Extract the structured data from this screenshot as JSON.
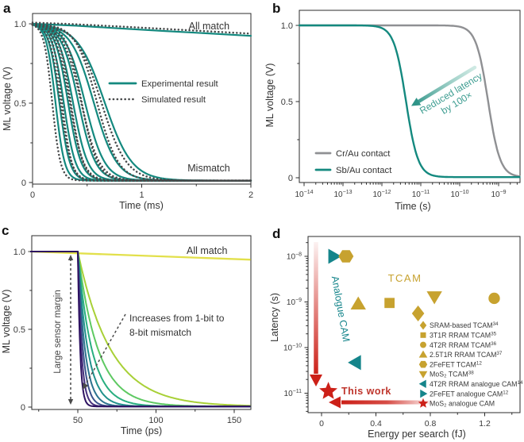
{
  "colors": {
    "teal_curve": "#14897f",
    "teal_marker": "#15858b",
    "teal_text": "#3f9e92",
    "gray_curve": "#8f9093",
    "dark_dotted": "#47494a",
    "gold": "#c7a22f",
    "red": "#cc2018",
    "red_text": "#bf352c",
    "yellow": "#e2e04b",
    "axis": "#2b2b2b",
    "text": "#3a3a3a",
    "anno": "#333333",
    "dash_gray": "#4a4a4a"
  },
  "chart_data": [
    {
      "panel_label": "a",
      "type": "line",
      "xlabel": "Time (ms)",
      "ylabel": "ML voltage (V)",
      "xlim": [
        0,
        2
      ],
      "ylim": [
        0,
        1.07
      ],
      "xticks": [
        {
          "v": 0,
          "t": "0"
        },
        {
          "v": 1,
          "t": "1"
        },
        {
          "v": 2,
          "t": "2"
        }
      ],
      "xminor": [
        0.5,
        1.5
      ],
      "yticks": [
        {
          "v": 0,
          "t": "0"
        },
        {
          "v": 0.5,
          "t": "0.5"
        },
        {
          "v": 1,
          "t": "1.0"
        }
      ],
      "yminor": [
        0.25,
        0.75
      ],
      "annotations": [
        {
          "text": "All match",
          "x": 1.43,
          "y": 0.985
        },
        {
          "text": "Mismatch",
          "x": 1.42,
          "y": 0.09
        }
      ],
      "legend": [
        {
          "label": "Experimental result",
          "style": "solid",
          "color_key": "teal_curve"
        },
        {
          "label": "Simulated result",
          "style": "dotted",
          "color_key": "dark_dotted"
        }
      ],
      "series": [
        {
          "name": "all-match-experimental",
          "model": "points",
          "style": "solid",
          "color_key": "teal_curve",
          "width": 2.2,
          "points": [
            [
              0,
              1.0
            ],
            [
              0.4,
              0.988
            ],
            [
              0.8,
              0.971
            ],
            [
              1.2,
              0.955
            ],
            [
              1.6,
              0.94
            ],
            [
              2,
              0.924
            ]
          ]
        },
        {
          "name": "mismatch-experimental",
          "model": "logistic-group",
          "style": "solid",
          "color_key": "teal_curve",
          "width": 2.2,
          "floor": 0.012,
          "curves": [
            {
              "m": 0.21,
              "w": 0.042
            },
            {
              "m": 0.245,
              "w": 0.048
            },
            {
              "m": 0.285,
              "w": 0.054
            },
            {
              "m": 0.325,
              "w": 0.06
            },
            {
              "m": 0.37,
              "w": 0.068
            },
            {
              "m": 0.42,
              "w": 0.078
            },
            {
              "m": 0.48,
              "w": 0.09
            },
            {
              "m": 0.56,
              "w": 0.105
            },
            {
              "m": 0.66,
              "w": 0.125
            }
          ]
        },
        {
          "name": "all-match-simulated",
          "model": "points",
          "style": "dotted",
          "color_key": "dark_dotted",
          "width": 2.5,
          "points": [
            [
              0,
              1.008
            ],
            [
              0.4,
              0.997
            ],
            [
              0.8,
              0.983
            ],
            [
              1.2,
              0.968
            ],
            [
              1.6,
              0.953
            ],
            [
              2,
              0.938
            ]
          ]
        },
        {
          "name": "mismatch-simulated",
          "model": "logistic-group",
          "style": "dotted",
          "color_key": "dark_dotted",
          "width": 2.5,
          "floor": 0.012,
          "curves": [
            {
              "m": 0.18,
              "w": 0.038
            },
            {
              "m": 0.27,
              "w": 0.044
            },
            {
              "m": 0.255,
              "w": 0.05
            },
            {
              "m": 0.35,
              "w": 0.056
            },
            {
              "m": 0.34,
              "w": 0.063
            },
            {
              "m": 0.45,
              "w": 0.072
            },
            {
              "m": 0.445,
              "w": 0.083
            },
            {
              "m": 0.59,
              "w": 0.097
            },
            {
              "m": 0.63,
              "w": 0.115
            }
          ]
        }
      ]
    },
    {
      "panel_label": "b",
      "type": "line",
      "xscale": "log",
      "xlabel": "Time (s)",
      "ylabel": "ML voltage (V)",
      "xlim_log": [
        -14.12,
        -8.46
      ],
      "ylim": [
        0,
        1.07
      ],
      "xticks_log": [
        {
          "v": -14,
          "exp": "−14"
        },
        {
          "v": -13,
          "exp": "−13"
        },
        {
          "v": -12,
          "exp": "−12"
        },
        {
          "v": -11,
          "exp": "−11"
        },
        {
          "v": -10,
          "exp": "−10"
        },
        {
          "v": -9,
          "exp": "−9"
        }
      ],
      "yticks": [
        {
          "v": 0,
          "t": "0"
        },
        {
          "v": 0.5,
          "t": "0.5"
        },
        {
          "v": 1,
          "t": "1.0"
        }
      ],
      "yminor": [
        0.25,
        0.75
      ],
      "legend": [
        {
          "label": "Cr/Au contact",
          "color_key": "gray_curve"
        },
        {
          "label": "Sb/Au contact",
          "color_key": "teal_curve"
        }
      ],
      "annotation_arrow": {
        "lines": [
          "Reduced latency",
          "by 100×"
        ]
      },
      "series": [
        {
          "name": "Cr/Au contact",
          "model": "log-logistic",
          "color_key": "gray_curve",
          "width": 2.4,
          "m": -9.27,
          "w": 0.155
        },
        {
          "name": "Sb/Au contact",
          "model": "log-logistic",
          "color_key": "teal_curve",
          "width": 2.4,
          "m": -11.38,
          "w": 0.155
        }
      ]
    },
    {
      "panel_label": "c",
      "type": "line",
      "xlabel": "Time (ps)",
      "ylabel": "ML voltage (V)",
      "xlim": [
        20,
        160
      ],
      "ylim": [
        0,
        1.07
      ],
      "xticks": [
        {
          "v": 50,
          "t": "50"
        },
        {
          "v": 100,
          "t": "100"
        },
        {
          "v": 150,
          "t": "150"
        }
      ],
      "xminor": [
        25,
        75,
        125
      ],
      "yticks": [
        {
          "v": 0,
          "t": "0"
        },
        {
          "v": 0.5,
          "t": "0.5"
        },
        {
          "v": 1,
          "t": "1.0"
        }
      ],
      "yminor": [
        0.25,
        0.75
      ],
      "annotations": {
        "all_match": "All match",
        "sensor_margin": "Large sensor margin",
        "increase_line1": "Increases from 1-bit to",
        "increase_line2": "8-bit mismatch"
      },
      "series": [
        {
          "name": "all-match",
          "model": "points",
          "color_key": "yellow",
          "width": 2.3,
          "points": [
            [
              20,
              1.0
            ],
            [
              160,
              0.948
            ]
          ]
        },
        {
          "name": "mismatch-1bit-to-8bit",
          "model": "delayed-exp-group",
          "t0": 50,
          "width": 2,
          "curves": [
            {
              "bits": 1,
              "tau": 21,
              "color": "#a8d036"
            },
            {
              "bits": 2,
              "tau": 13,
              "color": "#5ec962"
            },
            {
              "bits": 3,
              "tau": 9,
              "color": "#28ae80"
            },
            {
              "bits": 4,
              "tau": 6.4,
              "color": "#21918c"
            },
            {
              "bits": 5,
              "tau": 4.6,
              "color": "#2c728e"
            },
            {
              "bits": 6,
              "tau": 3.3,
              "color": "#3b528b"
            },
            {
              "bits": 7,
              "tau": 2.3,
              "color": "#462f7c"
            },
            {
              "bits": 8,
              "tau": 1.5,
              "color": "#2d1160"
            }
          ]
        }
      ]
    },
    {
      "panel_label": "d",
      "type": "scatter",
      "xlabel": "Energy per search (fJ)",
      "ylabel": "Latency (s)",
      "xticks": [
        {
          "v": 0,
          "t": "0"
        },
        {
          "v": 0.4,
          "t": "0.4"
        },
        {
          "v": 0.8,
          "t": "0.8"
        },
        {
          "v": 1.2,
          "t": "1.2"
        }
      ],
      "xminor": [
        0.2,
        0.6,
        1.0,
        1.4
      ],
      "yticks_log": [
        {
          "v": -8,
          "exp": "−8"
        },
        {
          "v": -9,
          "exp": "−9"
        },
        {
          "v": -10,
          "exp": "−10"
        },
        {
          "v": -11,
          "exp": "−11"
        }
      ],
      "group_labels": {
        "tcam": "TCAM",
        "analogue_cam": "Analogue CAM",
        "this_work": "This work"
      },
      "points": [
        {
          "label": "2FeFET analogue CAM",
          "ref": "12",
          "marker": "triangle-right",
          "color_key": "teal_marker",
          "x": 0.09,
          "latency_s": 1e-08
        },
        {
          "label": "2FeFET TCAM",
          "ref": "12",
          "marker": "hexagon",
          "color_key": "gold",
          "x": 0.18,
          "latency_s": 1e-08
        },
        {
          "label": "2.5T1R RRAM TCAM",
          "ref": "37",
          "marker": "triangle-up",
          "color_key": "gold",
          "x": 0.27,
          "latency_s": 9e-10
        },
        {
          "label": "3T1R RRAM TCAM",
          "ref": "35",
          "marker": "square",
          "color_key": "gold",
          "x": 0.5,
          "latency_s": 9.5e-10
        },
        {
          "label": "SRAM-based TCAM",
          "ref": "34",
          "marker": "diamond",
          "color_key": "gold",
          "x": 0.71,
          "latency_s": 5.6e-10
        },
        {
          "label": "MoS₂ TCAM",
          "ref": "38",
          "marker": "triangle-down",
          "color_key": "gold",
          "x": 0.83,
          "latency_s": 1.3e-09
        },
        {
          "label": "4T2R RRAM TCAM",
          "ref": "36",
          "marker": "circle",
          "color_key": "gold",
          "x": 1.27,
          "latency_s": 1.2e-09
        },
        {
          "label": "4T2R RRAM analogue CAM",
          "ref": "14",
          "marker": "triangle-left",
          "color_key": "teal_marker",
          "x": 0.25,
          "latency_s": 4.7e-11
        },
        {
          "label": "MoS₂ analogue CAM",
          "ref": "",
          "marker": "star",
          "color_key": "red",
          "x": 0.05,
          "latency_s": 1.1e-11
        }
      ],
      "legend": [
        {
          "label": "SRAM-based TCAM",
          "sup": "34",
          "marker": "diamond",
          "color_key": "gold"
        },
        {
          "label": "3T1R RRAM TCAM",
          "sup": "35",
          "marker": "square",
          "color_key": "gold"
        },
        {
          "label": "4T2R RRAM TCAM",
          "sup": "36",
          "marker": "circle",
          "color_key": "gold"
        },
        {
          "label": "2.5T1R RRAM TCAM",
          "sup": "37",
          "marker": "triangle-up",
          "color_key": "gold"
        },
        {
          "label": "2FeFET TCAM",
          "sup": "12",
          "marker": "hexagon",
          "color_key": "gold"
        },
        {
          "label": "MoS₂ TCAM",
          "sup": "38",
          "marker": "triangle-down",
          "color_key": "gold"
        },
        {
          "label": "4T2R RRAM analogue CAM",
          "sup": "14",
          "marker": "triangle-left",
          "color_key": "teal_marker"
        },
        {
          "label": "2FeFET analogue CAM",
          "sup": "12",
          "marker": "triangle-right",
          "color_key": "teal_marker"
        },
        {
          "label": "MoS₂ analogue CAM",
          "sup": "",
          "marker": "star",
          "color_key": "red"
        }
      ]
    }
  ]
}
